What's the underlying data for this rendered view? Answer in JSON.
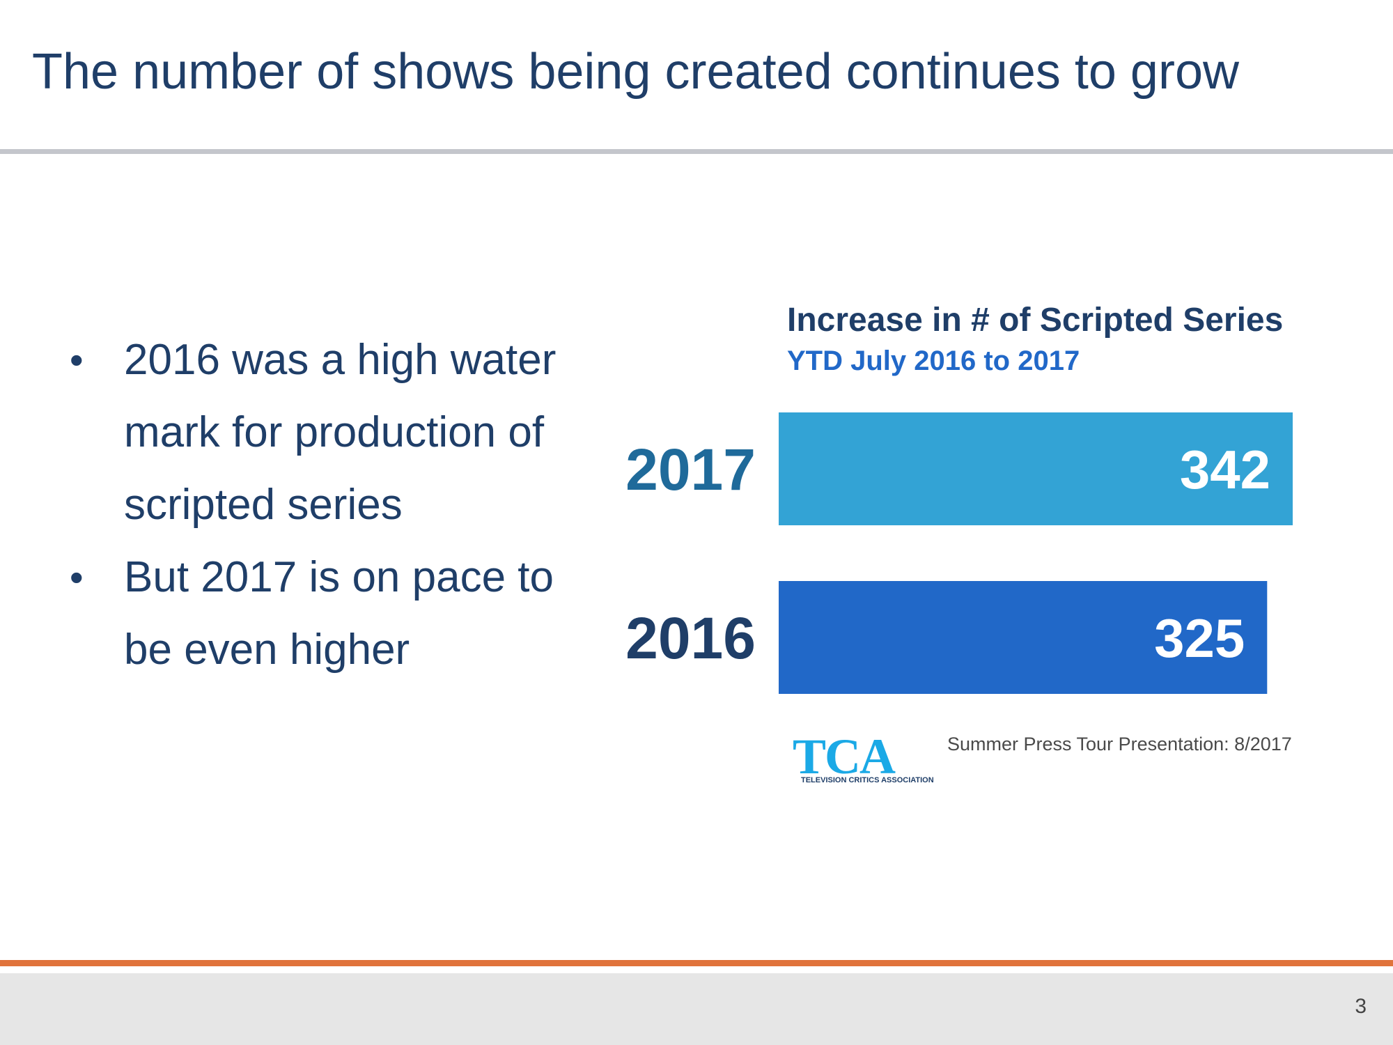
{
  "slide": {
    "title": "The number of shows being created continues to grow",
    "page_number": "3"
  },
  "bullets": [
    "2016 was a high water mark for production of scripted series",
    "But 2017 is on pace to be even higher"
  ],
  "bullet_symbol": "•",
  "chart_data": {
    "type": "bar",
    "orientation": "horizontal",
    "title": "Increase in # of Scripted Series",
    "subtitle": "YTD July 2016 to 2017",
    "categories": [
      "2017",
      "2016"
    ],
    "values": [
      342,
      325
    ],
    "bar_colors": [
      "#33a3d5",
      "#2168c8"
    ],
    "label_color": "#1f3e68",
    "value_label_color": "#ffffff",
    "xlim": [
      0,
      380
    ],
    "xlabel": "",
    "ylabel": "",
    "grid": false
  },
  "source": {
    "logo_letters": "TCA",
    "logo_subtext": "TELEVISION CRITICS ASSOCIATION",
    "note": "Summer Press Tour Presentation: 8/2017"
  },
  "colors": {
    "title": "#1f3e68",
    "footer_accent": "#e0733b",
    "footer_band": "#e6e6e6"
  }
}
